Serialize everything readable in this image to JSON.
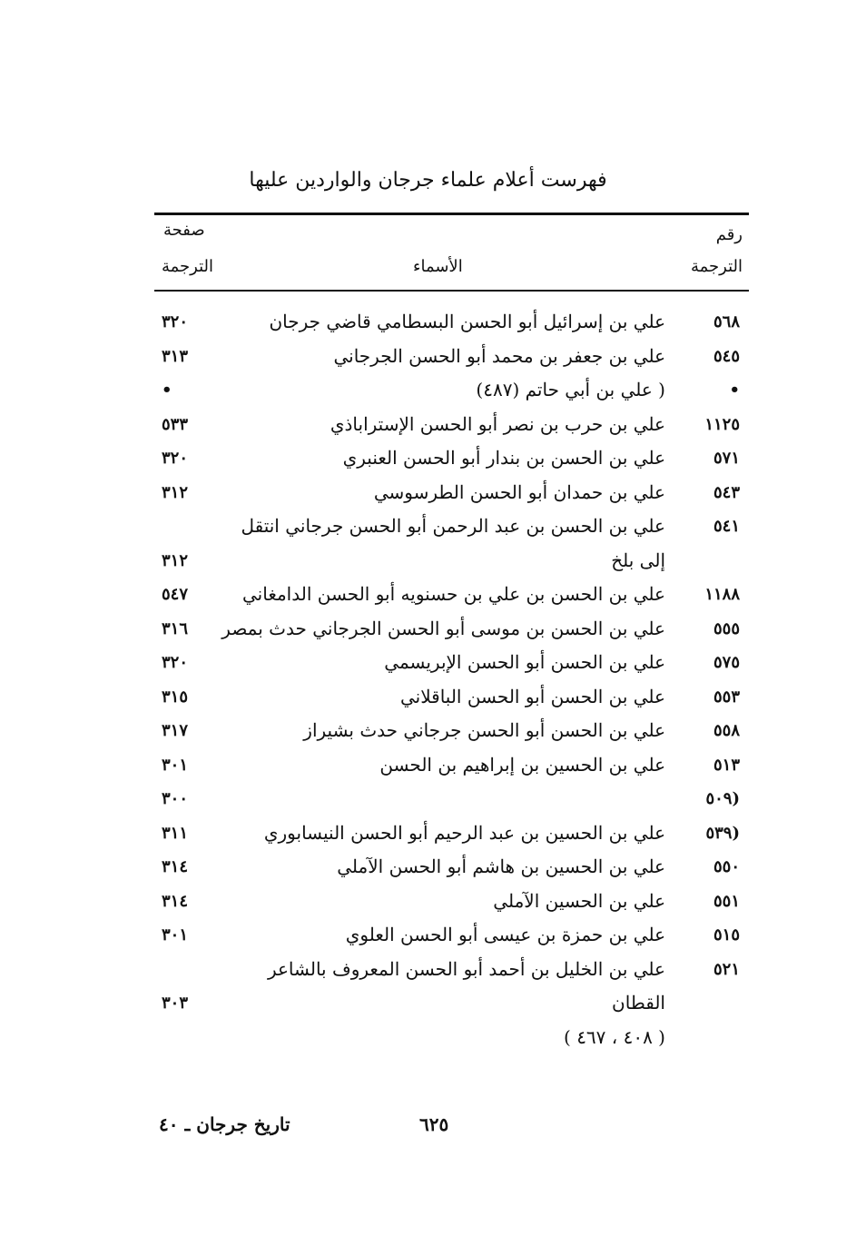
{
  "title": "فهرست أعلام علماء جرجان والواردين عليها",
  "headers": {
    "num_line1": "رقم",
    "num_line2": "الترجمة",
    "names": "الأسماء",
    "page_line1": "صفحة",
    "page_line2": "الترجمة"
  },
  "rows": [
    {
      "num": "٥٦٨",
      "lines": [
        "علي بن إسرائيل أبو الحسن البسطامي قاضي جرجان"
      ],
      "page": "٣٢٠"
    },
    {
      "num": "٥٤٥",
      "lines": [
        "علي بن جعفر بن محمد أبو الحسن الجرجاني"
      ],
      "page": "٣١٣"
    },
    {
      "num": "•",
      "lines": [
        "( علي بن أبي حاتم (٤٨٧)"
      ],
      "page": "•"
    },
    {
      "num": "١١٢٥",
      "lines": [
        "علي بن حرب بن نصر أبو الحسن الإستراباذي"
      ],
      "page": "٥٣٣"
    },
    {
      "num": "٥٧١",
      "lines": [
        "علي بن الحسن بن بندار أبو الحسن العنبري"
      ],
      "page": "٣٢٠"
    },
    {
      "num": "٥٤٣",
      "lines": [
        "علي بن حمدان أبو الحسن الطرسوسي"
      ],
      "page": "٣١٢"
    },
    {
      "num": "٥٤١",
      "lines": [
        "علي بن الحسن بن عبد الرحمن أبو الحسن جرجاني انتقل",
        "إلى بلخ"
      ],
      "page": "٣١٢"
    },
    {
      "num": "١١٨٨",
      "lines": [
        "علي بن الحسن بن علي بن حسنويه أبو الحسن الدامغاني"
      ],
      "page": "٥٤٧"
    },
    {
      "num": "٥٥٥",
      "lines": [
        "علي بن الحسن بن موسى أبو الحسن الجرجاني حدث بمصر"
      ],
      "page": "٣١٦"
    },
    {
      "num": "٥٧٥",
      "lines": [
        "علي بن الحسن أبو الحسن الإبريسمي"
      ],
      "page": "٣٢٠"
    },
    {
      "num": "٥٥٣",
      "lines": [
        "علي بن الحسن أبو الحسن الباقلاني"
      ],
      "page": "٣١٥"
    },
    {
      "num": "٥٥٨",
      "lines": [
        "علي بن الحسن أبو الحسن جرجاني حدث بشيراز"
      ],
      "page": "٣١٧"
    },
    {
      "num": "٥١٣",
      "lines": [
        "علي بن الحسين بن إبراهيم بن الحسن"
      ],
      "page": "٣٠١"
    },
    {
      "num": "(٥٠٩",
      "lines": [
        ""
      ],
      "page": "٣٠٠"
    },
    {
      "num": "(٥٣٩",
      "lines": [
        "علي بن الحسين بن عبد الرحيم أبو الحسن النيسابوري"
      ],
      "page": "٣١١"
    },
    {
      "num": "٥٥٠",
      "lines": [
        "علي بن الحسين بن هاشم أبو الحسن الآملي"
      ],
      "page": "٣١٤"
    },
    {
      "num": "٥٥١",
      "lines": [
        "علي بن الحسين الآملي"
      ],
      "page": "٣١٤"
    },
    {
      "num": "٥١٥",
      "lines": [
        "علي بن حمزة بن عيسى أبو الحسن العلوي"
      ],
      "page": "٣٠١"
    },
    {
      "num": "٥٢١",
      "lines": [
        "علي بن الخليل بن أحمد أبو الحسن المعروف بالشاعر",
        "القطان"
      ],
      "page": "٣٠٣"
    },
    {
      "num": "",
      "lines": [
        "( ٤٠٨ ، ٤٦٧ )"
      ],
      "page": ""
    }
  ],
  "footer": {
    "page_number": "٦٢٥",
    "book_signature": "تاريخ جرجان ـ ٤٠"
  }
}
